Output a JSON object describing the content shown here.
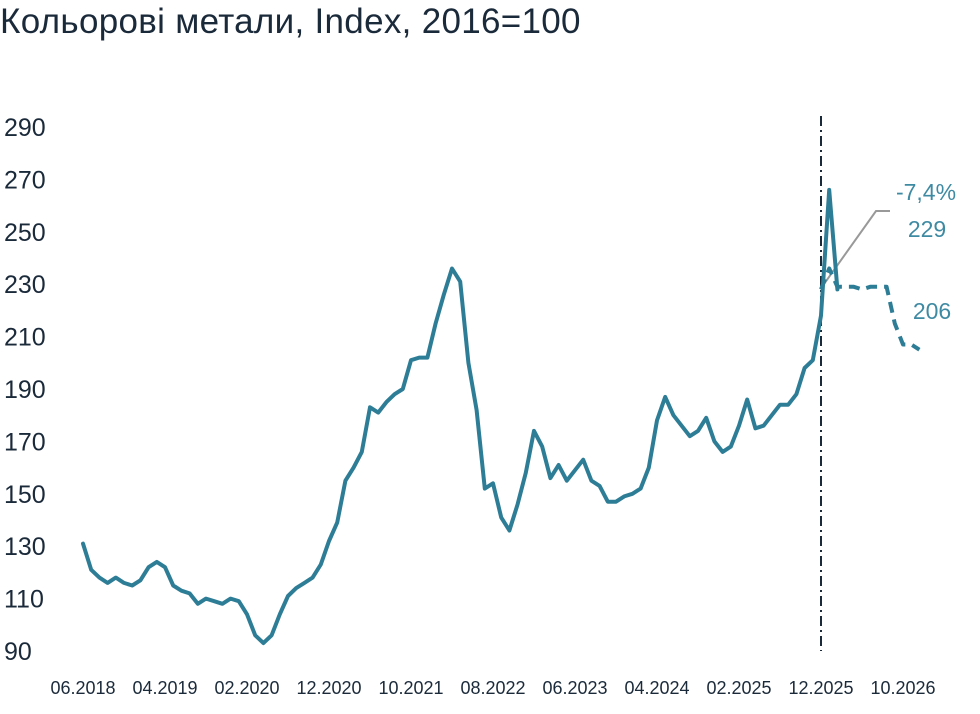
{
  "chart_data": {
    "type": "line",
    "title": "Кольорові метали, Index, 2016=100",
    "xlabel": "",
    "ylabel": "",
    "ylim": [
      90,
      290
    ],
    "yticks": [
      90,
      110,
      130,
      150,
      170,
      190,
      210,
      230,
      250,
      270,
      290
    ],
    "x_tick_labels": [
      "06.2018",
      "04.2019",
      "02.2020",
      "12.2020",
      "10.2021",
      "08.2022",
      "06.2023",
      "04.2024",
      "02.2025",
      "12.2025",
      "10.2026"
    ],
    "grid": false,
    "legend": "none",
    "x_start": "06.2018",
    "x_step": "1 month",
    "colors": {
      "series": "#2e7d96",
      "divider": "#1b2a3a",
      "leader": "#999999",
      "annotation_text": "#3f8aa3"
    },
    "series": [
      {
        "style": "solid",
        "x_start": "06.2018",
        "values": [
          131,
          121,
          118,
          116,
          118,
          116,
          115,
          117,
          122,
          124,
          122,
          115,
          113,
          112,
          108,
          110,
          109,
          108,
          110,
          109,
          104,
          96,
          93,
          96,
          104,
          111,
          114,
          116,
          118,
          123,
          132,
          139,
          155,
          160,
          166,
          183,
          181,
          185,
          188,
          190,
          201,
          202,
          202,
          215,
          226,
          236,
          231,
          200,
          182,
          152,
          154,
          141,
          136,
          146,
          158,
          174,
          168,
          156,
          161,
          155,
          159,
          163,
          155,
          153,
          147,
          147,
          149,
          150,
          152,
          160,
          178,
          187,
          180,
          176,
          172,
          174,
          179,
          170,
          166,
          168,
          176,
          186,
          175,
          176,
          180,
          184,
          184,
          188,
          198,
          201,
          218,
          266,
          228
        ]
      },
      {
        "style": "dashed",
        "x_start": "12.2025",
        "values": [
          228,
          236,
          229,
          229,
          229,
          228,
          229,
          229,
          229,
          215,
          207,
          207,
          205
        ]
      }
    ],
    "annotations": [
      {
        "text": "-7,4%"
      },
      {
        "text": "229"
      },
      {
        "text": "206"
      }
    ]
  }
}
